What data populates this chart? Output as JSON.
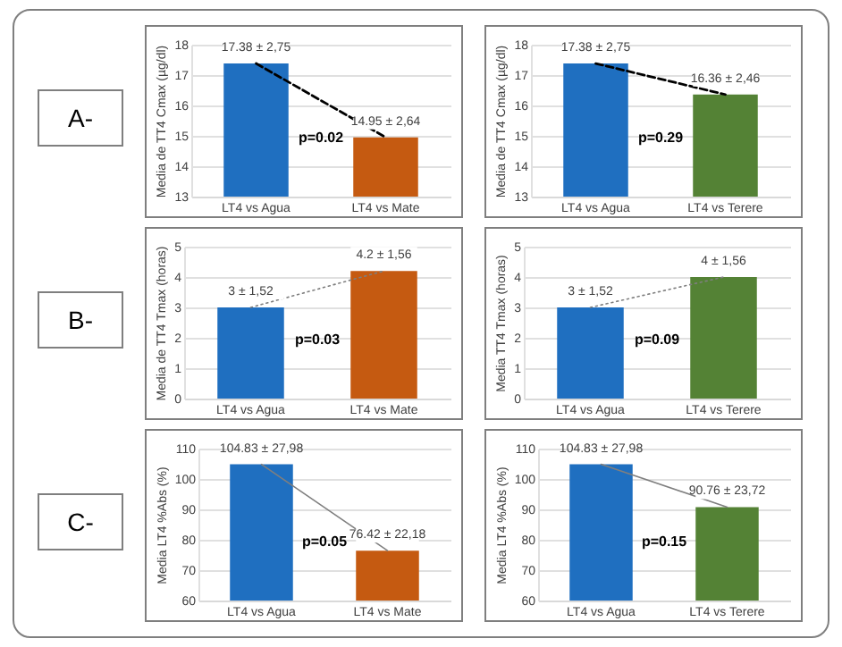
{
  "chart_data": [
    {
      "type": "bar",
      "ylabel": "Media de TT4 Cmax (µg/dl)",
      "categories": [
        "LT4 vs Agua",
        "LT4 vs Mate"
      ],
      "ylim": [
        13,
        18
      ],
      "yticks": [
        13,
        14,
        15,
        16,
        17,
        18
      ],
      "grid": "y",
      "title": "A-",
      "annotations": [
        "p=0.02"
      ],
      "series": [
        {
          "type": "bar",
          "colors": [
            "#1f6fc0",
            "#c55a11"
          ],
          "values": [
            17.38,
            14.95
          ],
          "value_labels": [
            "17.38 ± 2,75",
            "14.95 ± 2,64"
          ]
        },
        {
          "type": "line",
          "color": "#000000",
          "line_style": "dashed",
          "values": [
            17.38,
            14.95
          ]
        }
      ]
    },
    {
      "type": "bar",
      "ylabel": "Media de TT4 Cmax (µg/dl)",
      "categories": [
        "LT4 vs Agua",
        "LT4 vs Terere"
      ],
      "ylim": [
        13,
        18
      ],
      "yticks": [
        13,
        14,
        15,
        16,
        17,
        18
      ],
      "grid": "y",
      "annotations": [
        "p=0.29"
      ],
      "series": [
        {
          "type": "bar",
          "colors": [
            "#1f6fc0",
            "#548235"
          ],
          "values": [
            17.38,
            16.36
          ],
          "value_labels": [
            "17.38 ± 2,75",
            "16.36 ± 2,46"
          ]
        },
        {
          "type": "line",
          "color": "#000000",
          "line_style": "dashed",
          "values": [
            17.38,
            16.36
          ]
        }
      ]
    },
    {
      "type": "bar",
      "ylabel": "Media de TT4 Tmax (horas)",
      "categories": [
        "LT4 vs Agua",
        "LT4 vs Mate"
      ],
      "ylim": [
        0,
        5
      ],
      "yticks": [
        0,
        1,
        2,
        3,
        4,
        5
      ],
      "grid": "y",
      "title": "B-",
      "annotations": [
        "p=0.03"
      ],
      "series": [
        {
          "type": "bar",
          "colors": [
            "#1f6fc0",
            "#c55a11"
          ],
          "values": [
            3,
            4.2
          ],
          "value_labels": [
            "3 ± 1,52",
            "4.2 ± 1,56"
          ]
        },
        {
          "type": "line",
          "color": "#7f7f7f",
          "line_style": "dotted",
          "values": [
            3,
            4.2
          ]
        }
      ]
    },
    {
      "type": "bar",
      "ylabel": "Media TT4 Tmax (horas)",
      "categories": [
        "LT4 vs Agua",
        "LT4 vs Terere"
      ],
      "ylim": [
        0,
        5
      ],
      "yticks": [
        0,
        1,
        2,
        3,
        4,
        5
      ],
      "grid": "y",
      "annotations": [
        "p=0.09"
      ],
      "series": [
        {
          "type": "bar",
          "colors": [
            "#1f6fc0",
            "#548235"
          ],
          "values": [
            3,
            4
          ],
          "value_labels": [
            "3 ± 1,52",
            "4 ± 1,56"
          ]
        },
        {
          "type": "line",
          "color": "#7f7f7f",
          "line_style": "dotted",
          "values": [
            3,
            4
          ]
        }
      ]
    },
    {
      "type": "bar",
      "ylabel": "Media LT4 %Abs (%)",
      "categories": [
        "LT4 vs Agua",
        "LT4 vs Mate"
      ],
      "ylim": [
        60,
        110
      ],
      "yticks": [
        60,
        70,
        80,
        90,
        100,
        110
      ],
      "grid": "y",
      "title": "C-",
      "annotations": [
        "p=0.05"
      ],
      "series": [
        {
          "type": "bar",
          "colors": [
            "#1f6fc0",
            "#c55a11"
          ],
          "values": [
            104.83,
            76.42
          ],
          "value_labels": [
            "104.83 ± 27,98",
            "76.42 ± 22,18"
          ]
        },
        {
          "type": "line",
          "color": "#7f7f7f",
          "line_style": "solid",
          "values": [
            104.83,
            76.42
          ]
        }
      ]
    },
    {
      "type": "bar",
      "ylabel": "Media LT4 %Abs (%)",
      "categories": [
        "LT4 vs Agua",
        "LT4 vs Terere"
      ],
      "ylim": [
        60,
        110
      ],
      "yticks": [
        60,
        70,
        80,
        90,
        100,
        110
      ],
      "grid": "y",
      "annotations": [
        "p=0.15"
      ],
      "series": [
        {
          "type": "bar",
          "colors": [
            "#1f6fc0",
            "#548235"
          ],
          "values": [
            104.83,
            90.76
          ],
          "value_labels": [
            "104.83 ± 27,98",
            "90.76 ± 23,72"
          ]
        },
        {
          "type": "line",
          "color": "#7f7f7f",
          "line_style": "solid",
          "values": [
            104.83,
            90.76
          ]
        }
      ]
    }
  ]
}
